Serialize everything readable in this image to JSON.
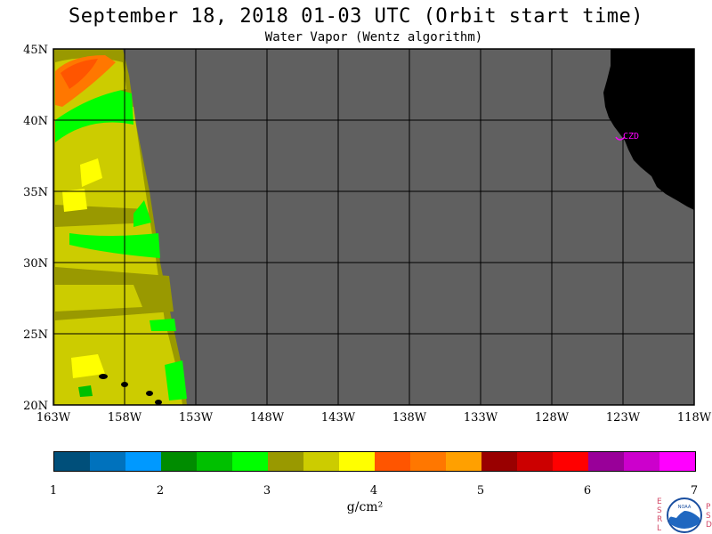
{
  "header": {
    "title": "September 18, 2018  01-03 UTC  (Orbit start time)",
    "subtitle": "Water Vapor (Wentz algorithm)"
  },
  "map": {
    "lat_range": [
      20,
      45
    ],
    "lon_range": [
      -163,
      -118
    ],
    "lat_labels": [
      "45N",
      "40N",
      "35N",
      "30N",
      "25N",
      "20N"
    ],
    "lon_labels": [
      "163W",
      "158W",
      "153W",
      "148W",
      "143W",
      "138W",
      "133W",
      "128W",
      "123W",
      "118W"
    ],
    "station_label": "CZD",
    "colors": {
      "no_data": "#606060",
      "land": "#000000",
      "grid": "#000000",
      "station": "#ff00ff"
    }
  },
  "colorbar": {
    "colors": [
      "#004f7a",
      "#0072bd",
      "#0099ff",
      "#008c00",
      "#00c000",
      "#00ff00",
      "#999900",
      "#cccc00",
      "#ffff00",
      "#ff5500",
      "#ff7700",
      "#ffa000",
      "#990000",
      "#cc0000",
      "#ff0000",
      "#990099",
      "#cc00cc",
      "#ff00ff"
    ],
    "tick_labels": [
      "1",
      "2",
      "3",
      "4",
      "5",
      "6",
      "7"
    ],
    "units_label": "g/cm²"
  },
  "logo": {
    "left_letters": [
      "E",
      "S",
      "R",
      "L"
    ],
    "right_letters": [
      "P",
      "S",
      "D"
    ],
    "emblem_text": "NOAA"
  }
}
